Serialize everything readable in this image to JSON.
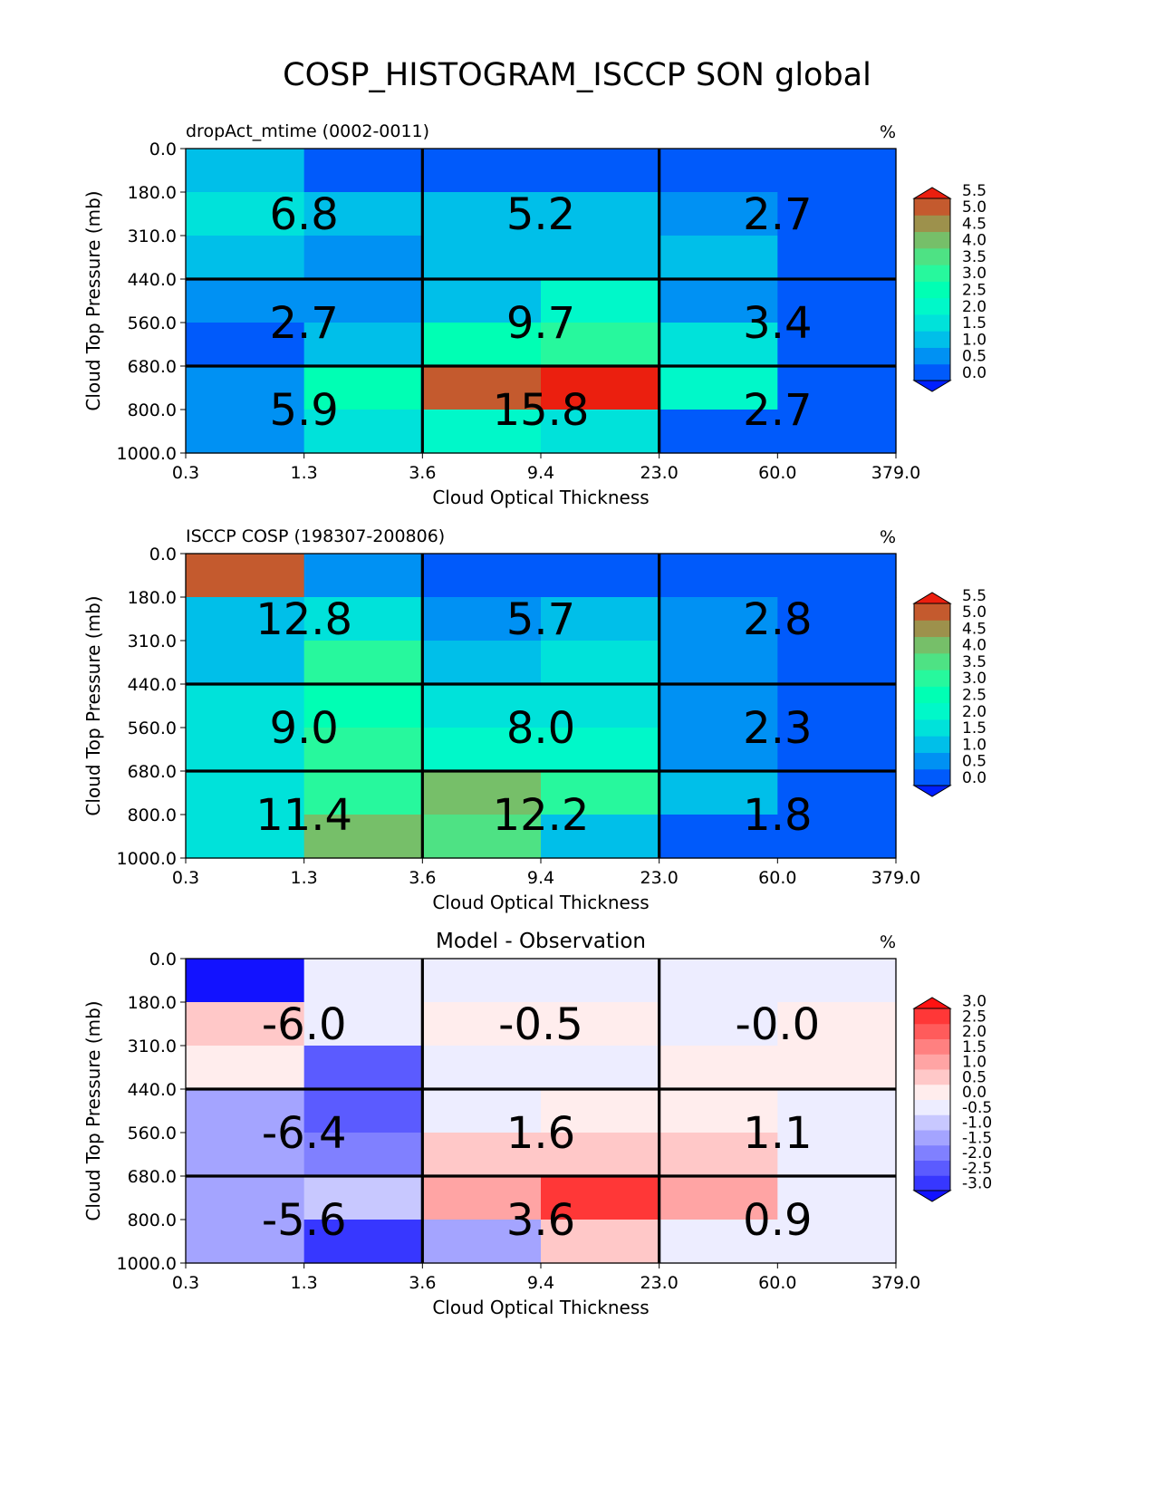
{
  "title": "COSP_HISTOGRAM_ISCCP SON global",
  "chart_data": [
    {
      "type": "heatmap",
      "panel_title": "dropAct_mtime (0002-0011)",
      "panel_title_align": "left",
      "units": "%",
      "xlabel": "Cloud Optical Thickness",
      "ylabel": "Cloud Top Pressure (mb)",
      "x_ticks": [
        "0.3",
        "1.3",
        "3.6",
        "9.4",
        "23.0",
        "60.0",
        "379.0"
      ],
      "y_ticks": [
        "0.0",
        "180.0",
        "310.0",
        "440.0",
        "560.0",
        "680.0",
        "800.0",
        "1000.0"
      ],
      "colormap": "rainbow",
      "color_levels": [
        -0.5,
        0.0,
        0.5,
        1.0,
        1.5,
        2.0,
        2.5,
        3.0,
        3.5,
        4.0,
        4.5,
        5.0,
        5.5,
        6.0
      ],
      "colorbar_ticks": [
        "0.0",
        "0.5",
        "1.0",
        "1.5",
        "2.0",
        "2.5",
        "3.0",
        "3.5",
        "4.0",
        "4.5",
        "5.0",
        "5.5"
      ],
      "values": [
        [
          1.3,
          0.2,
          0.2,
          0.2,
          0.2,
          0.2
        ],
        [
          1.8,
          1.3,
          1.3,
          1.3,
          0.8,
          0.2
        ],
        [
          1.3,
          0.8,
          1.3,
          1.3,
          1.3,
          0.2
        ],
        [
          0.8,
          0.8,
          1.3,
          2.3,
          0.8,
          0.2
        ],
        [
          0.2,
          1.3,
          2.8,
          3.3,
          1.8,
          0.2
        ],
        [
          0.8,
          2.8,
          5.3,
          5.8,
          2.3,
          0.2
        ],
        [
          0.8,
          1.8,
          2.3,
          1.8,
          0.2,
          0.2
        ]
      ],
      "block_totals": [
        [
          "6.8",
          "5.2",
          "2.7"
        ],
        [
          "2.7",
          "9.7",
          "3.4"
        ],
        [
          "5.9",
          "15.8",
          "2.7"
        ]
      ]
    },
    {
      "type": "heatmap",
      "panel_title": "ISCCP COSP (198307-200806)",
      "panel_title_align": "left",
      "units": "%",
      "xlabel": "Cloud Optical Thickness",
      "ylabel": "Cloud Top Pressure (mb)",
      "x_ticks": [
        "0.3",
        "1.3",
        "3.6",
        "9.4",
        "23.0",
        "60.0",
        "379.0"
      ],
      "y_ticks": [
        "0.0",
        "180.0",
        "310.0",
        "440.0",
        "560.0",
        "680.0",
        "800.0",
        "1000.0"
      ],
      "colormap": "rainbow",
      "color_levels": [
        -0.5,
        0.0,
        0.5,
        1.0,
        1.5,
        2.0,
        2.5,
        3.0,
        3.5,
        4.0,
        4.5,
        5.0,
        5.5,
        6.0
      ],
      "colorbar_ticks": [
        "0.0",
        "0.5",
        "1.0",
        "1.5",
        "2.0",
        "2.5",
        "3.0",
        "3.5",
        "4.0",
        "4.5",
        "5.0",
        "5.5"
      ],
      "values": [
        [
          5.3,
          0.8,
          0.2,
          0.2,
          0.2,
          0.2
        ],
        [
          1.3,
          1.8,
          0.8,
          1.3,
          0.8,
          0.2
        ],
        [
          1.3,
          3.3,
          1.3,
          1.8,
          0.8,
          0.2
        ],
        [
          1.8,
          2.8,
          1.8,
          1.8,
          0.8,
          0.2
        ],
        [
          1.8,
          3.3,
          2.3,
          2.3,
          0.8,
          0.2
        ],
        [
          1.8,
          3.3,
          4.3,
          3.3,
          1.3,
          0.2
        ],
        [
          1.8,
          4.3,
          3.8,
          1.3,
          0.2,
          0.2
        ]
      ],
      "block_totals": [
        [
          "12.8",
          "5.7",
          "2.8"
        ],
        [
          "9.0",
          "8.0",
          "2.3"
        ],
        [
          "11.4",
          "12.2",
          "1.8"
        ]
      ]
    },
    {
      "type": "heatmap",
      "panel_title": "Model - Observation",
      "panel_title_align": "center",
      "units": "%",
      "xlabel": "Cloud Optical Thickness",
      "ylabel": "Cloud Top Pressure (mb)",
      "x_ticks": [
        "0.3",
        "1.3",
        "3.6",
        "9.4",
        "23.0",
        "60.0",
        "379.0"
      ],
      "y_ticks": [
        "0.0",
        "180.0",
        "310.0",
        "440.0",
        "560.0",
        "680.0",
        "800.0",
        "1000.0"
      ],
      "colormap": "bwr",
      "color_levels": [
        -3.5,
        -3.0,
        -2.5,
        -2.0,
        -1.5,
        -1.0,
        -0.5,
        0.0,
        0.5,
        1.0,
        1.5,
        2.0,
        2.5,
        3.0,
        3.5
      ],
      "colorbar_ticks": [
        "-3.0",
        "-2.5",
        "-2.0",
        "-1.5",
        "-1.0",
        "-0.5",
        "0.0",
        "0.5",
        "1.0",
        "1.5",
        "2.0",
        "2.5",
        "3.0"
      ],
      "values": [
        [
          -3.8,
          -0.2,
          -0.2,
          -0.2,
          -0.2,
          -0.2
        ],
        [
          0.8,
          -0.2,
          0.2,
          0.2,
          -0.2,
          0.2
        ],
        [
          0.2,
          -2.3,
          -0.2,
          -0.2,
          0.2,
          0.2
        ],
        [
          -1.3,
          -2.3,
          -0.2,
          0.2,
          0.2,
          -0.2
        ],
        [
          -1.3,
          -1.8,
          0.8,
          0.8,
          0.8,
          -0.2
        ],
        [
          -1.3,
          -0.8,
          1.3,
          2.8,
          1.3,
          -0.2
        ],
        [
          -1.3,
          -2.8,
          -1.3,
          0.8,
          -0.2,
          -0.2
        ]
      ],
      "block_totals": [
        [
          "-6.0",
          "-0.5",
          "-0.0"
        ],
        [
          "-6.4",
          "1.6",
          "1.1"
        ],
        [
          "-5.6",
          "3.6",
          "0.9"
        ]
      ]
    }
  ]
}
